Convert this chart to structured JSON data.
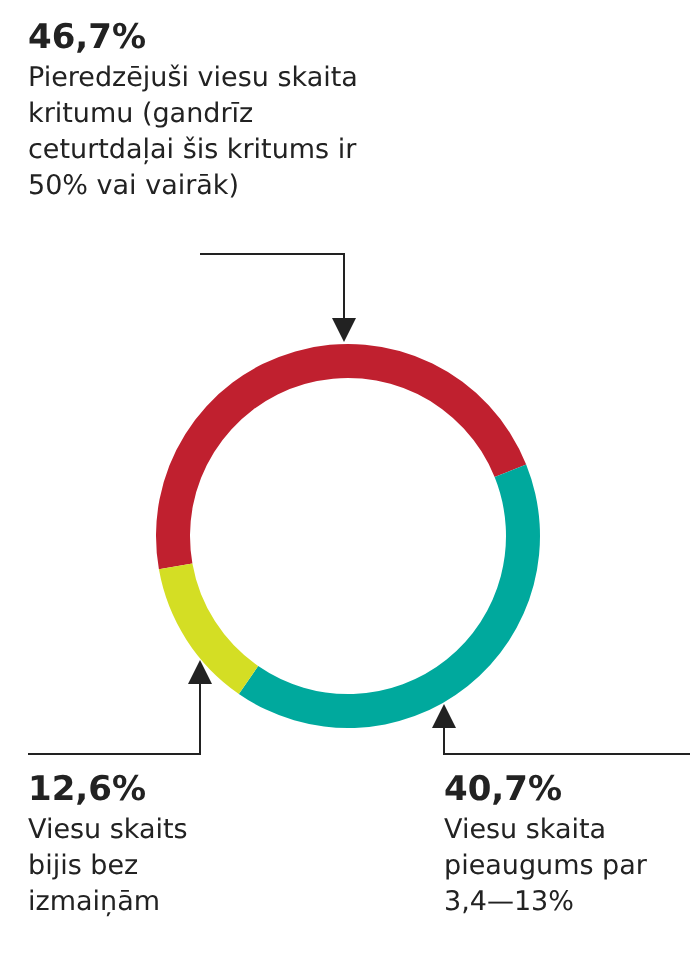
{
  "chart_data": {
    "type": "donut",
    "categories": [
      "Pieredzējuši viesu skaita kritumu (gandrīz ceturtdaļai šis kritums ir 50% vai vairāk)",
      "Viesu skaita pieaugums par 3,4—13%",
      "Viesu skaits bijis bez izmaiņām"
    ],
    "values": [
      46.7,
      40.7,
      12.6
    ],
    "colors": [
      "#c0202f",
      "#00a99d",
      "#d4de24"
    ],
    "value_labels": [
      "46,7%",
      "40,7%",
      "12,6%"
    ]
  }
}
